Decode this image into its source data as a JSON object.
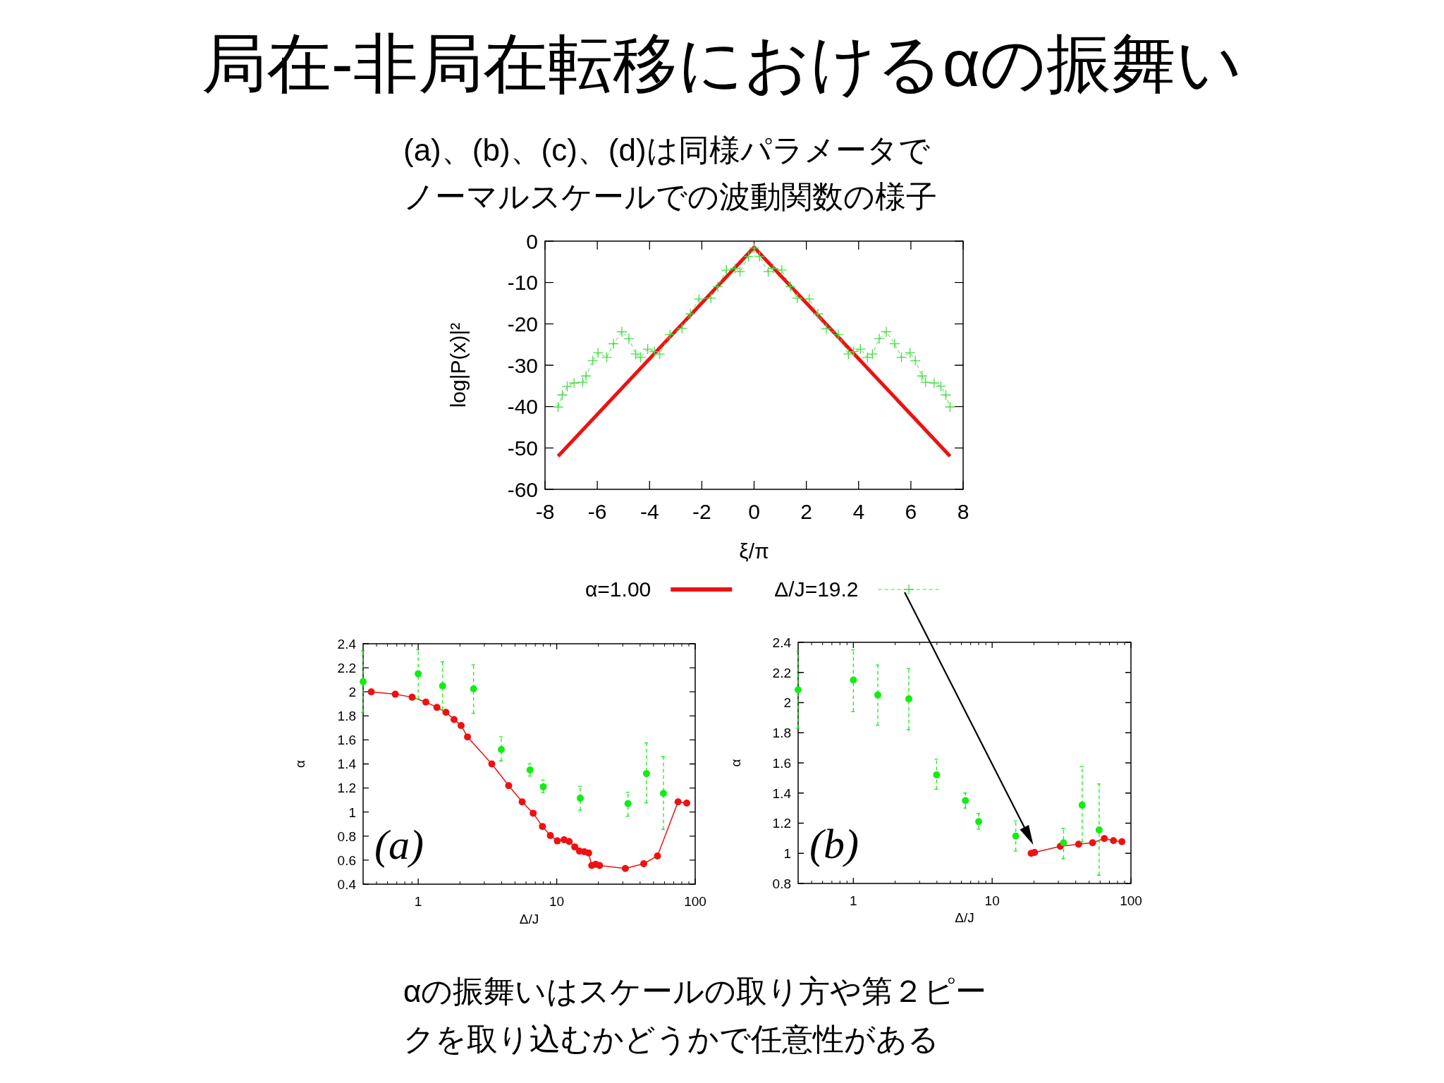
{
  "chart_data": [
    {
      "type": "line",
      "title": "局在-非局在転移におけるαの振舞い",
      "subtitle": "(a)、(b)、(c)、(d)は同様パラメータでノーマルスケールでの波動関数の様子",
      "xlabel": "ξ/π",
      "ylabel": "log|P(x)|²",
      "xlim": [
        -8,
        8
      ],
      "xticks": [
        -8,
        -6,
        -4,
        -2,
        0,
        2,
        4,
        6,
        8
      ],
      "ylim": [
        -60,
        0
      ],
      "yticks": [
        -60,
        -50,
        -40,
        -30,
        -20,
        -10,
        0
      ],
      "legend": "bottom",
      "grid": false,
      "annotations": [
        "αの振舞いはスケールの取り方や第２ピークを取り込むかどうかで任意性がある"
      ],
      "series": [
        {
          "name": "α=1.00",
          "color": "#ee1111",
          "marker": "none",
          "line_style": "solid",
          "x": [
            -7.5,
            0,
            7.5
          ],
          "values": [
            -52,
            -1.5,
            -52
          ]
        },
        {
          "name": "Δ/J=19.2",
          "color": "#44dd44",
          "marker": "cross",
          "line_style": "dashed",
          "x": [
            -7.5,
            -7.34,
            -7.15,
            -6.89,
            -6.56,
            -6.43,
            -6.17,
            -5.97,
            -5.64,
            -5.38,
            -5.06,
            -4.79,
            -4.53,
            -4.34,
            -4.07,
            -3.81,
            -3.61,
            -3.22,
            -2.76,
            -2.44,
            -2.11,
            -1.65,
            -1.39,
            -1.06,
            -0.73,
            -0.54,
            -0.21,
            0,
            0.21,
            0.54,
            0.73,
            1.06,
            1.39,
            1.65,
            2.11,
            2.44,
            2.76,
            3.22,
            3.61,
            3.81,
            4.07,
            4.34,
            4.53,
            4.79,
            5.06,
            5.38,
            5.64,
            5.97,
            6.17,
            6.43,
            6.56,
            6.89,
            7.15,
            7.34,
            7.5
          ],
          "values": [
            -40.1,
            -37.2,
            -35.1,
            -34.3,
            -34.1,
            -32.6,
            -28.9,
            -27.0,
            -28.1,
            -24.8,
            -21.9,
            -23.6,
            -27.3,
            -28.1,
            -26.1,
            -26.7,
            -27.3,
            -22.6,
            -21.1,
            -17.6,
            -14.0,
            -13.8,
            -11.0,
            -7.0,
            -6.6,
            -7.4,
            -3.7,
            -1.7,
            -3.7,
            -7.4,
            -6.6,
            -7.0,
            -11.0,
            -13.8,
            -14.0,
            -17.6,
            -21.1,
            -22.6,
            -27.3,
            -26.7,
            -26.1,
            -28.1,
            -27.3,
            -23.6,
            -21.9,
            -24.8,
            -28.1,
            -27.0,
            -28.9,
            -32.6,
            -34.1,
            -34.3,
            -35.1,
            -37.2,
            -40.1
          ]
        }
      ]
    },
    {
      "type": "line",
      "xlabel": "Δ/J",
      "ylabel": "α",
      "log": "x",
      "xlim": [
        0.4,
        100
      ],
      "xticks": [
        1,
        10,
        100
      ],
      "ylim": [
        0.4,
        2.4
      ],
      "yticks": [
        0.4,
        0.6,
        0.8,
        1,
        1.2,
        1.4,
        1.6,
        1.8,
        2,
        2.2,
        2.4
      ],
      "grid": false,
      "annotations": [
        "(a)"
      ],
      "series": [
        {
          "type": "line",
          "color": "#ee1111",
          "marker": "circle",
          "line_style": "solid",
          "x": [
            0.458,
            0.683,
            0.904,
            1.135,
            1.365,
            1.585,
            1.815,
            2.04,
            2.27,
            3.4,
            4.5,
            5.63,
            6.76,
            7.89,
            9.0,
            10.1,
            11.3,
            12.3,
            13.5,
            14.6,
            15.8,
            17.0,
            17.9,
            19.1,
            20.4,
            31.3,
            42.5,
            53.4,
            75.2,
            86.9
          ],
          "values": [
            2.0,
            1.98,
            1.955,
            1.915,
            1.87,
            1.83,
            1.77,
            1.72,
            1.625,
            1.4,
            1.22,
            1.085,
            0.99,
            0.88,
            0.805,
            0.76,
            0.77,
            0.755,
            0.71,
            0.675,
            0.67,
            0.66,
            0.555,
            0.565,
            0.555,
            0.53,
            0.57,
            0.635,
            1.085,
            1.075
          ]
        },
        {
          "type": "scatter",
          "color": "#11ee11",
          "marker": "circle",
          "line_style": "dashed",
          "x": [
            0.4,
            1.0,
            1.5,
            2.51,
            3.98,
            6.42,
            8.0,
            14.8,
            32.7,
            44.5,
            59.0
          ],
          "values": [
            2.085,
            2.15,
            2.05,
            2.025,
            1.52,
            1.35,
            1.21,
            1.115,
            1.07,
            1.32,
            1.155
          ],
          "errors": [
            [
              1.83,
              2.34
            ],
            [
              1.94,
              2.35
            ],
            [
              1.85,
              2.25
            ],
            [
              1.82,
              2.225
            ],
            [
              1.425,
              1.625
            ],
            [
              1.3,
              1.4
            ],
            [
              1.16,
              1.265
            ],
            [
              1.015,
              1.215
            ],
            [
              0.965,
              1.165
            ],
            [
              1.075,
              1.575
            ],
            [
              0.855,
              1.46
            ]
          ]
        }
      ]
    },
    {
      "type": "line",
      "xlabel": "Δ/J",
      "ylabel": "α",
      "log": "x",
      "xlim": [
        0.4,
        100
      ],
      "xticks": [
        1,
        10,
        100
      ],
      "ylim": [
        0.8,
        2.4
      ],
      "yticks": [
        0.8,
        1,
        1.2,
        1.4,
        1.6,
        1.8,
        2,
        2.2,
        2.4
      ],
      "grid": false,
      "annotations": [
        "(b)"
      ],
      "series": [
        {
          "type": "line",
          "color": "#ee1111",
          "marker": "circle",
          "line_style": "solid",
          "x": [
            19.1,
            20.2,
            31.0,
            42.0,
            52.9,
            64.3,
            74.8,
            86.1
          ],
          "values": [
            1.0,
            1.006,
            1.047,
            1.061,
            1.07,
            1.098,
            1.084,
            1.077
          ]
        },
        {
          "type": "scatter",
          "color": "#11ee11",
          "marker": "circle",
          "line_style": "dashed",
          "x": [
            0.4,
            1.0,
            1.5,
            2.51,
            3.98,
            6.42,
            8.0,
            14.8,
            32.7,
            44.5,
            59.0
          ],
          "values": [
            2.085,
            2.15,
            2.05,
            2.025,
            1.52,
            1.35,
            1.21,
            1.115,
            1.07,
            1.32,
            1.155
          ],
          "errors": [
            [
              1.83,
              2.34
            ],
            [
              1.94,
              2.35
            ],
            [
              1.85,
              2.25
            ],
            [
              1.82,
              2.225
            ],
            [
              1.425,
              1.625
            ],
            [
              1.3,
              1.4
            ],
            [
              1.16,
              1.265
            ],
            [
              1.015,
              1.215
            ],
            [
              0.965,
              1.165
            ],
            [
              1.075,
              1.575
            ],
            [
              0.855,
              1.46
            ]
          ]
        }
      ]
    }
  ]
}
